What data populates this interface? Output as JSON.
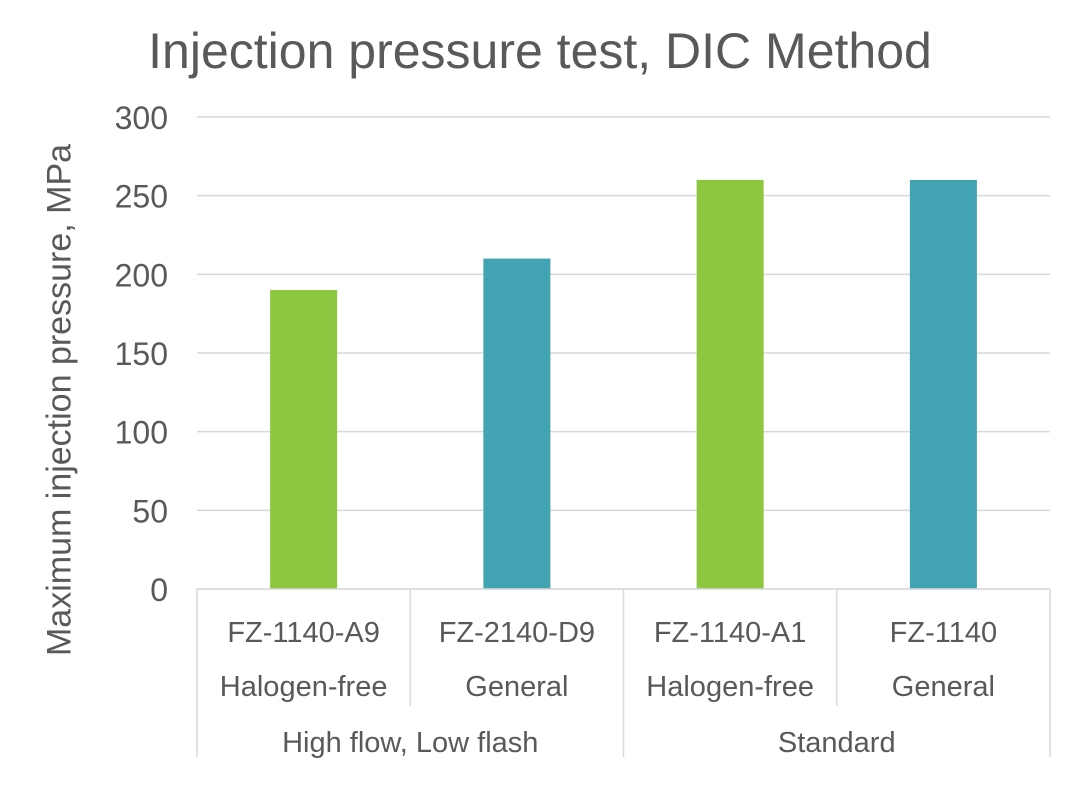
{
  "chart_data": {
    "type": "bar",
    "title": "Injection pressure test, DIC Method",
    "ylabel": "Maximum injection pressure, MPa",
    "xlabel": "",
    "ylim": [
      0,
      300
    ],
    "yticks": [
      0,
      50,
      100,
      150,
      200,
      250,
      300
    ],
    "grid": true,
    "categories": [
      {
        "name": "FZ-1140-A9",
        "type": "Halogen-free",
        "group": "High flow, Low flash",
        "value": 190,
        "color": "#8DC63F"
      },
      {
        "name": "FZ-2140-D9",
        "type": "General",
        "group": "High flow, Low flash",
        "value": 210,
        "color": "#42A3B2"
      },
      {
        "name": "FZ-1140-A1",
        "type": "Halogen-free",
        "group": "Standard",
        "value": 260,
        "color": "#8DC63F"
      },
      {
        "name": "FZ-1140",
        "type": "General",
        "group": "Standard",
        "value": 260,
        "color": "#42A3B2"
      }
    ],
    "groups": [
      "High flow, Low flash",
      "Standard"
    ]
  }
}
